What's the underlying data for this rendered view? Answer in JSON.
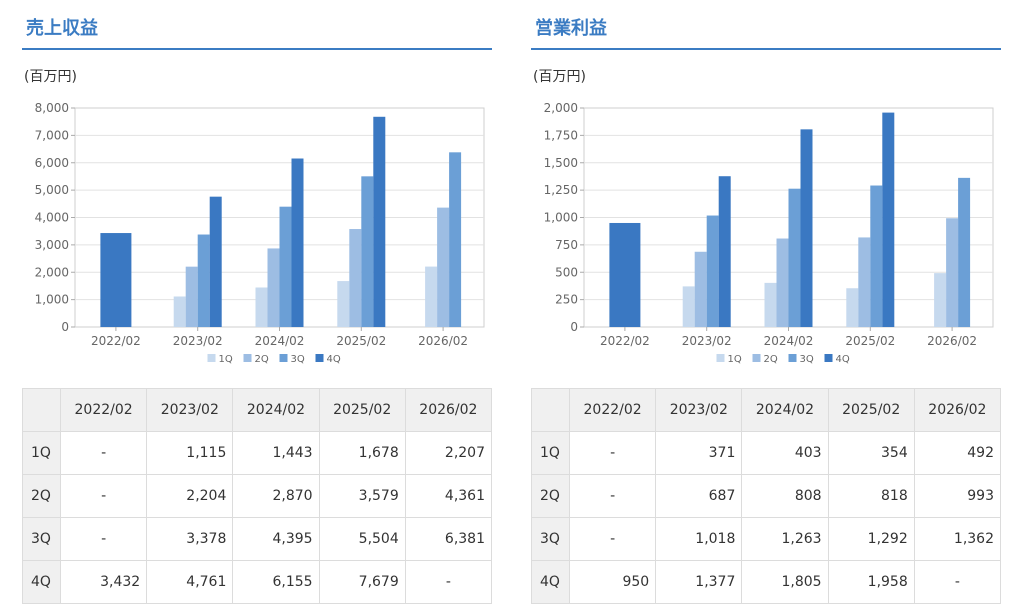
{
  "panels": [
    {
      "title": "売上収益",
      "unit": "(百万円)",
      "table": {
        "columns": [
          "2022/02",
          "2023/02",
          "2024/02",
          "2025/02",
          "2026/02"
        ],
        "rows": [
          {
            "label": "1Q",
            "values": [
              "-",
              "1,115",
              "1,443",
              "1,678",
              "2,207"
            ]
          },
          {
            "label": "2Q",
            "values": [
              "-",
              "2,204",
              "2,870",
              "3,579",
              "4,361"
            ]
          },
          {
            "label": "3Q",
            "values": [
              "-",
              "3,378",
              "4,395",
              "5,504",
              "6,381"
            ]
          },
          {
            "label": "4Q",
            "values": [
              "3,432",
              "4,761",
              "6,155",
              "7,679",
              "-"
            ]
          }
        ]
      }
    },
    {
      "title": "営業利益",
      "unit": "(百万円)",
      "table": {
        "columns": [
          "2022/02",
          "2023/02",
          "2024/02",
          "2025/02",
          "2026/02"
        ],
        "rows": [
          {
            "label": "1Q",
            "values": [
              "-",
              "371",
              "403",
              "354",
              "492"
            ]
          },
          {
            "label": "2Q",
            "values": [
              "-",
              "687",
              "808",
              "818",
              "993"
            ]
          },
          {
            "label": "3Q",
            "values": [
              "-",
              "1,018",
              "1,263",
              "1,292",
              "1,362"
            ]
          },
          {
            "label": "4Q",
            "values": [
              "950",
              "1,377",
              "1,805",
              "1,958",
              "-"
            ]
          }
        ]
      }
    }
  ],
  "chart_data": [
    {
      "type": "bar",
      "title": "売上収益",
      "ylabel": "(百万円)",
      "categories": [
        "2022/02",
        "2023/02",
        "2024/02",
        "2025/02",
        "2026/02"
      ],
      "ylim": [
        0,
        8000
      ],
      "yticks": [
        0,
        1000,
        2000,
        3000,
        4000,
        5000,
        6000,
        7000,
        8000
      ],
      "ytick_labels": [
        "0",
        "1,000",
        "2,000",
        "3,000",
        "4,000",
        "5,000",
        "6,000",
        "7,000",
        "8,000"
      ],
      "grid": true,
      "legend": "bottom",
      "series": [
        {
          "name": "1Q",
          "color": "#c6d9ee",
          "values": [
            null,
            1115,
            1443,
            1678,
            2207
          ]
        },
        {
          "name": "2Q",
          "color": "#9dbde3",
          "values": [
            null,
            2204,
            2870,
            3579,
            4361
          ]
        },
        {
          "name": "3Q",
          "color": "#6b9fd6",
          "values": [
            null,
            3378,
            4395,
            5504,
            6381
          ]
        },
        {
          "name": "4Q",
          "color": "#3a78c2",
          "values": [
            3432,
            4761,
            6155,
            7679,
            null
          ]
        }
      ]
    },
    {
      "type": "bar",
      "title": "営業利益",
      "ylabel": "(百万円)",
      "categories": [
        "2022/02",
        "2023/02",
        "2024/02",
        "2025/02",
        "2026/02"
      ],
      "ylim": [
        0,
        2000
      ],
      "yticks": [
        0,
        250,
        500,
        750,
        1000,
        1250,
        1500,
        1750,
        2000
      ],
      "ytick_labels": [
        "0",
        "250",
        "500",
        "750",
        "1,000",
        "1,250",
        "1,500",
        "1,750",
        "2,000"
      ],
      "grid": true,
      "legend": "bottom",
      "series": [
        {
          "name": "1Q",
          "color": "#c6d9ee",
          "values": [
            null,
            371,
            403,
            354,
            492
          ]
        },
        {
          "name": "2Q",
          "color": "#9dbde3",
          "values": [
            null,
            687,
            808,
            818,
            993
          ]
        },
        {
          "name": "3Q",
          "color": "#6b9fd6",
          "values": [
            null,
            1018,
            1263,
            1292,
            1362
          ]
        },
        {
          "name": "4Q",
          "color": "#3a78c2",
          "values": [
            950,
            1377,
            1805,
            1958,
            null
          ]
        }
      ]
    }
  ]
}
